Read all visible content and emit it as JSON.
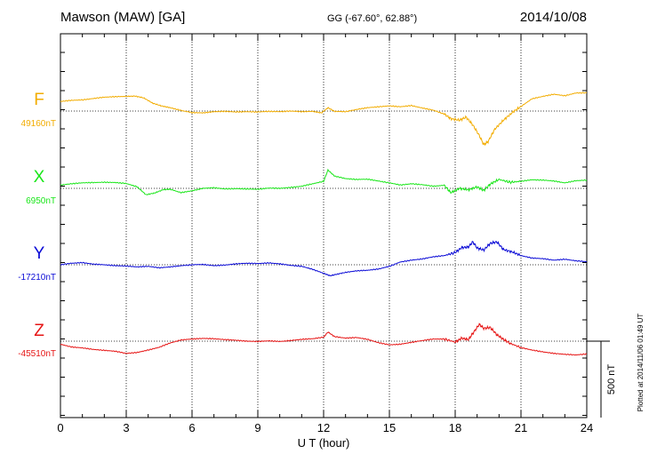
{
  "header": {
    "station": "Mawson (MAW)  [GA]",
    "coords": "GG (-67.60°,  62.88°)",
    "date": "2014/10/08"
  },
  "plotted_note": "Plotted at 2014/11/06 01:49 UT",
  "scale_bar_label": "500 nT",
  "chart_data": {
    "type": "line",
    "title": "Mawson (MAW)  [GA]",
    "xlabel": "U T (hour)",
    "xlim": [
      0,
      24
    ],
    "xticks": [
      0,
      3,
      6,
      9,
      12,
      15,
      18,
      21,
      24
    ],
    "minor_ticks_per_hour": 1,
    "grid": "dotted vertical every 3 h; dotted baseline per component",
    "scale_bar_nT": 500,
    "series": [
      {
        "name": "F",
        "baseline_label": "49160nT",
        "baseline_nT": 49160,
        "color": "#f2ac00",
        "points": [
          [
            0,
            63
          ],
          [
            0.5,
            70
          ],
          [
            1,
            73
          ],
          [
            1.5,
            82
          ],
          [
            2,
            91
          ],
          [
            2.5,
            94
          ],
          [
            3,
            96
          ],
          [
            3.4,
            98
          ],
          [
            3.8,
            86
          ],
          [
            4.2,
            52
          ],
          [
            4.6,
            34
          ],
          [
            5,
            22
          ],
          [
            5.5,
            4
          ],
          [
            6,
            -10
          ],
          [
            6.5,
            -12
          ],
          [
            7,
            -4
          ],
          [
            7.5,
            -2
          ],
          [
            8,
            -6
          ],
          [
            8.5,
            -4
          ],
          [
            9,
            -6
          ],
          [
            9.5,
            -2
          ],
          [
            10,
            -4
          ],
          [
            10.5,
            0
          ],
          [
            11,
            -4
          ],
          [
            11.5,
            -2
          ],
          [
            11.9,
            -12
          ],
          [
            12.2,
            22
          ],
          [
            12.5,
            -2
          ],
          [
            13,
            -4
          ],
          [
            13.5,
            10
          ],
          [
            14,
            22
          ],
          [
            14.5,
            28
          ],
          [
            15,
            34
          ],
          [
            15.5,
            28
          ],
          [
            16,
            36
          ],
          [
            16.5,
            20
          ],
          [
            17,
            6
          ],
          [
            17.5,
            -20
          ],
          [
            17.8,
            -50
          ],
          [
            18.2,
            -60
          ],
          [
            18.5,
            -40
          ],
          [
            18.8,
            -90
          ],
          [
            19.1,
            -160
          ],
          [
            19.3,
            -220
          ],
          [
            19.5,
            -200
          ],
          [
            19.8,
            -120
          ],
          [
            20.2,
            -60
          ],
          [
            20.6,
            -10
          ],
          [
            21,
            30
          ],
          [
            21.5,
            80
          ],
          [
            22,
            96
          ],
          [
            22.5,
            110
          ],
          [
            23,
            100
          ],
          [
            23.5,
            118
          ],
          [
            24,
            120
          ]
        ]
      },
      {
        "name": "X",
        "baseline_label": "6950nT",
        "baseline_nT": 6950,
        "color": "#19e619",
        "points": [
          [
            0,
            22
          ],
          [
            0.5,
            30
          ],
          [
            1,
            36
          ],
          [
            1.5,
            38
          ],
          [
            2,
            40
          ],
          [
            2.5,
            38
          ],
          [
            3,
            32
          ],
          [
            3.5,
            10
          ],
          [
            3.9,
            -42
          ],
          [
            4.3,
            -30
          ],
          [
            4.7,
            -8
          ],
          [
            5,
            -6
          ],
          [
            5.5,
            -28
          ],
          [
            6,
            -16
          ],
          [
            6.5,
            0
          ],
          [
            7,
            4
          ],
          [
            7.5,
            -4
          ],
          [
            8,
            -2
          ],
          [
            8.5,
            -4
          ],
          [
            9,
            -6
          ],
          [
            9.5,
            2
          ],
          [
            10,
            0
          ],
          [
            10.5,
            6
          ],
          [
            11,
            14
          ],
          [
            11.5,
            30
          ],
          [
            12,
            46
          ],
          [
            12.2,
            120
          ],
          [
            12.5,
            80
          ],
          [
            13,
            64
          ],
          [
            13.5,
            58
          ],
          [
            14,
            60
          ],
          [
            14.5,
            48
          ],
          [
            15,
            36
          ],
          [
            15.5,
            22
          ],
          [
            16,
            30
          ],
          [
            16.5,
            24
          ],
          [
            17,
            14
          ],
          [
            17.5,
            20
          ],
          [
            17.8,
            -28
          ],
          [
            18.2,
            0
          ],
          [
            18.6,
            -10
          ],
          [
            19,
            10
          ],
          [
            19.3,
            -14
          ],
          [
            19.6,
            28
          ],
          [
            20,
            58
          ],
          [
            20.5,
            40
          ],
          [
            21,
            46
          ],
          [
            21.5,
            56
          ],
          [
            22,
            54
          ],
          [
            22.5,
            48
          ],
          [
            23,
            36
          ],
          [
            23.5,
            50
          ],
          [
            24,
            54
          ]
        ]
      },
      {
        "name": "Y",
        "baseline_label": "-17210nT",
        "baseline_nT": -17210,
        "color": "#0a0ad6",
        "points": [
          [
            0,
            0
          ],
          [
            0.5,
            10
          ],
          [
            1,
            14
          ],
          [
            1.5,
            4
          ],
          [
            2,
            0
          ],
          [
            2.5,
            -6
          ],
          [
            3,
            -8
          ],
          [
            3.5,
            -14
          ],
          [
            4,
            -10
          ],
          [
            4.5,
            -20
          ],
          [
            5,
            -14
          ],
          [
            5.5,
            -6
          ],
          [
            6,
            0
          ],
          [
            6.5,
            2
          ],
          [
            7,
            -6
          ],
          [
            7.5,
            -2
          ],
          [
            8,
            6
          ],
          [
            8.5,
            10
          ],
          [
            9,
            8
          ],
          [
            9.5,
            12
          ],
          [
            10,
            6
          ],
          [
            10.5,
            -4
          ],
          [
            11,
            -10
          ],
          [
            11.5,
            -30
          ],
          [
            12,
            -56
          ],
          [
            12.3,
            -72
          ],
          [
            12.6,
            -62
          ],
          [
            13,
            -50
          ],
          [
            13.5,
            -40
          ],
          [
            14,
            -36
          ],
          [
            14.5,
            -28
          ],
          [
            15,
            -10
          ],
          [
            15.5,
            18
          ],
          [
            16,
            30
          ],
          [
            16.5,
            38
          ],
          [
            17,
            52
          ],
          [
            17.5,
            60
          ],
          [
            18,
            80
          ],
          [
            18.3,
            112
          ],
          [
            18.6,
            116
          ],
          [
            18.8,
            150
          ],
          [
            19,
            110
          ],
          [
            19.3,
            96
          ],
          [
            19.6,
            140
          ],
          [
            19.9,
            150
          ],
          [
            20.2,
            100
          ],
          [
            20.6,
            84
          ],
          [
            21,
            60
          ],
          [
            21.5,
            44
          ],
          [
            22,
            40
          ],
          [
            22.5,
            30
          ],
          [
            23,
            36
          ],
          [
            23.5,
            26
          ],
          [
            24,
            20
          ]
        ]
      },
      {
        "name": "Z",
        "baseline_label": "-45510nT",
        "baseline_nT": -45510,
        "color": "#e61414",
        "points": [
          [
            0,
            -20
          ],
          [
            0.5,
            -38
          ],
          [
            1,
            -44
          ],
          [
            1.5,
            -54
          ],
          [
            2,
            -60
          ],
          [
            2.5,
            -66
          ],
          [
            3,
            -80
          ],
          [
            3.5,
            -74
          ],
          [
            4,
            -58
          ],
          [
            4.5,
            -40
          ],
          [
            5,
            -12
          ],
          [
            5.5,
            8
          ],
          [
            6,
            14
          ],
          [
            6.5,
            18
          ],
          [
            7,
            16
          ],
          [
            7.5,
            10
          ],
          [
            8,
            6
          ],
          [
            8.5,
            0
          ],
          [
            9,
            -2
          ],
          [
            9.5,
            2
          ],
          [
            10,
            -2
          ],
          [
            10.5,
            4
          ],
          [
            11,
            12
          ],
          [
            11.5,
            16
          ],
          [
            12,
            26
          ],
          [
            12.2,
            60
          ],
          [
            12.5,
            30
          ],
          [
            13,
            20
          ],
          [
            13.5,
            24
          ],
          [
            14,
            12
          ],
          [
            14.5,
            -10
          ],
          [
            15,
            -24
          ],
          [
            15.5,
            -20
          ],
          [
            16,
            -8
          ],
          [
            16.5,
            4
          ],
          [
            17,
            14
          ],
          [
            17.5,
            14
          ],
          [
            18,
            -6
          ],
          [
            18.3,
            20
          ],
          [
            18.6,
            10
          ],
          [
            18.8,
            50
          ],
          [
            19.1,
            110
          ],
          [
            19.3,
            84
          ],
          [
            19.6,
            90
          ],
          [
            19.9,
            42
          ],
          [
            20.2,
            12
          ],
          [
            20.5,
            -14
          ],
          [
            21,
            -42
          ],
          [
            21.5,
            -58
          ],
          [
            22,
            -70
          ],
          [
            22.5,
            -80
          ],
          [
            23,
            -86
          ],
          [
            23.5,
            -90
          ],
          [
            24,
            -84
          ]
        ]
      }
    ]
  }
}
